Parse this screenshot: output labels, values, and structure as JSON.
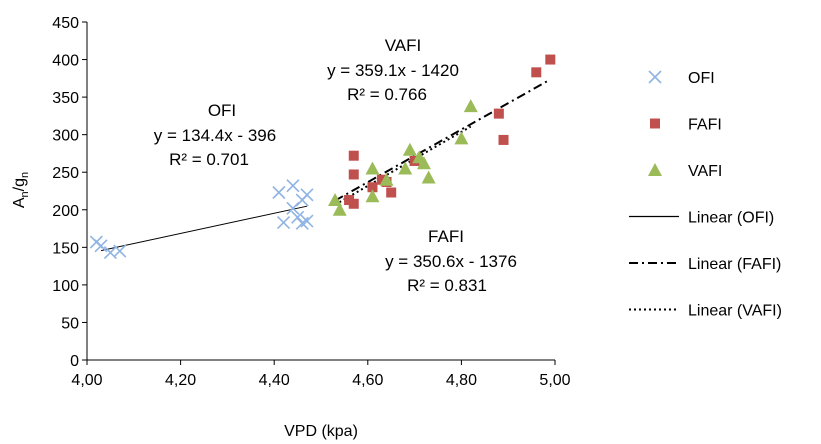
{
  "chart_data": {
    "type": "scatter",
    "xlabel": "VPD (kpa)",
    "ylabel_main": "A",
    "ylabel_sub1": "n",
    "ylabel_slash": "/g",
    "ylabel_sub2": "n",
    "xlim": [
      4.0,
      5.0
    ],
    "ylim": [
      0,
      450
    ],
    "x_ticks": [
      4.0,
      4.2,
      4.4,
      4.6,
      4.8,
      5.0
    ],
    "x_tick_labels": [
      "4,00",
      "4,20",
      "4,40",
      "4,60",
      "4,80",
      "5,00"
    ],
    "y_ticks": [
      0,
      50,
      100,
      150,
      200,
      250,
      300,
      350,
      400,
      450
    ],
    "y_tick_labels": [
      "0",
      "50",
      "100",
      "150",
      "200",
      "250",
      "300",
      "350",
      "400",
      "450"
    ],
    "grid": false,
    "legend_position": "right",
    "series": [
      {
        "name": "OFI",
        "marker": "x",
        "color": "#8fb4e3",
        "points": [
          [
            4.02,
            157
          ],
          [
            4.03,
            152
          ],
          [
            4.05,
            143
          ],
          [
            4.07,
            145
          ],
          [
            4.41,
            223
          ],
          [
            4.42,
            183
          ],
          [
            4.44,
            202
          ],
          [
            4.44,
            232
          ],
          [
            4.45,
            190
          ],
          [
            4.46,
            182
          ],
          [
            4.46,
            213
          ],
          [
            4.47,
            220
          ],
          [
            4.47,
            185
          ]
        ]
      },
      {
        "name": "FAFI",
        "marker": "square",
        "color": "#c0504d",
        "points": [
          [
            4.56,
            213
          ],
          [
            4.57,
            208
          ],
          [
            4.57,
            247
          ],
          [
            4.57,
            272
          ],
          [
            4.61,
            230
          ],
          [
            4.63,
            240
          ],
          [
            4.64,
            237
          ],
          [
            4.65,
            223
          ],
          [
            4.7,
            265
          ],
          [
            4.88,
            328
          ],
          [
            4.89,
            293
          ],
          [
            4.96,
            383
          ],
          [
            4.99,
            400
          ]
        ]
      },
      {
        "name": "VAFI",
        "marker": "triangle",
        "color": "#9bbb59",
        "points": [
          [
            4.53,
            213
          ],
          [
            4.54,
            200
          ],
          [
            4.61,
            218
          ],
          [
            4.61,
            255
          ],
          [
            4.64,
            240
          ],
          [
            4.68,
            255
          ],
          [
            4.69,
            280
          ],
          [
            4.71,
            270
          ],
          [
            4.72,
            262
          ],
          [
            4.73,
            243
          ],
          [
            4.8,
            295
          ],
          [
            4.82,
            338
          ]
        ]
      }
    ],
    "trendlines": [
      {
        "name": "Linear (OFI)",
        "series": "OFI",
        "slope": 134.4,
        "intercept": -396,
        "x_range": [
          4.03,
          4.47
        ],
        "style": "solid"
      },
      {
        "name": "Linear (FAFI)",
        "series": "FAFI",
        "slope": 350.6,
        "intercept": -1376,
        "x_range": [
          4.53,
          4.99
        ],
        "style": "dashdot"
      },
      {
        "name": "Linear (VAFI)",
        "series": "VAFI",
        "slope": 359.1,
        "intercept": -1420,
        "x_range": [
          4.53,
          4.82
        ],
        "style": "dotted"
      }
    ],
    "annotations": {
      "vafi": {
        "name": "VAFI",
        "equation": "y = 359.1x - 1420",
        "r2": "R² = 0.766"
      },
      "ofi": {
        "name": "OFI",
        "equation": "y = 134.4x - 396",
        "r2": "R² = 0.701"
      },
      "fafi": {
        "name": "FAFI",
        "equation": "y = 350.6x - 1376",
        "r2": "R² = 0.831"
      }
    },
    "legend": [
      {
        "label": "OFI",
        "marker": "x",
        "color": "#8fb4e3"
      },
      {
        "label": "FAFI",
        "marker": "square",
        "color": "#c0504d"
      },
      {
        "label": "VAFI",
        "marker": "triangle",
        "color": "#9bbb59"
      },
      {
        "label": "Linear (OFI)",
        "line": "solid",
        "color": "#000000"
      },
      {
        "label": "Linear (FAFI)",
        "line": "dashdot",
        "color": "#000000"
      },
      {
        "label": "Linear (VAFI)",
        "line": "dotted",
        "color": "#000000"
      }
    ]
  }
}
